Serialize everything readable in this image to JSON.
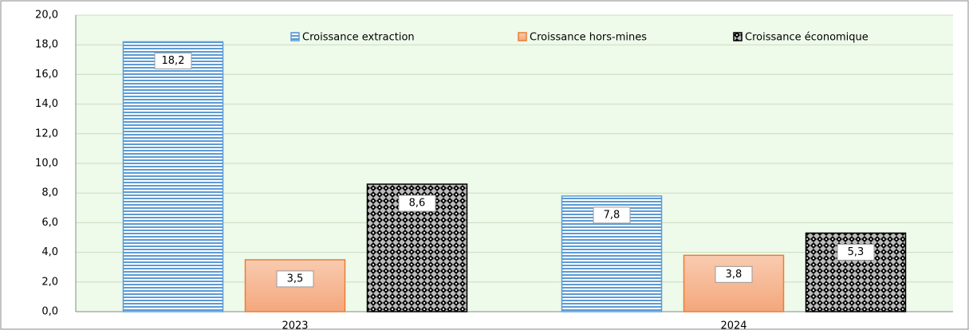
{
  "chart_data": {
    "type": "bar",
    "categories": [
      "2023",
      "2024"
    ],
    "series": [
      {
        "name": "Croissance extraction",
        "color": "#5b9bd5",
        "values": [
          18.2,
          7.8
        ],
        "value_labels": [
          "18,2",
          "7,8"
        ]
      },
      {
        "name": "Croissance hors-mines",
        "color": "#ed7d31",
        "values": [
          3.5,
          3.8
        ],
        "value_labels": [
          "3,5",
          "3,8"
        ]
      },
      {
        "name": "Croissance économique",
        "color": "#000000",
        "values": [
          8.6,
          5.3
        ],
        "value_labels": [
          "8,6",
          "5,3"
        ]
      }
    ],
    "ylim": [
      0,
      20
    ],
    "yticks": [
      {
        "value": 0,
        "label": "0,0"
      },
      {
        "value": 2,
        "label": "2,0"
      },
      {
        "value": 4,
        "label": "4,0"
      },
      {
        "value": 6,
        "label": "6,0"
      },
      {
        "value": 8,
        "label": "8,0"
      },
      {
        "value": 10,
        "label": "10,0"
      },
      {
        "value": 12,
        "label": "12,0"
      },
      {
        "value": 14,
        "label": "14,0"
      },
      {
        "value": 16,
        "label": "16,0"
      },
      {
        "value": 18,
        "label": "18,0"
      },
      {
        "value": 20,
        "label": "20,0"
      }
    ],
    "grid": true,
    "legend": "top"
  }
}
